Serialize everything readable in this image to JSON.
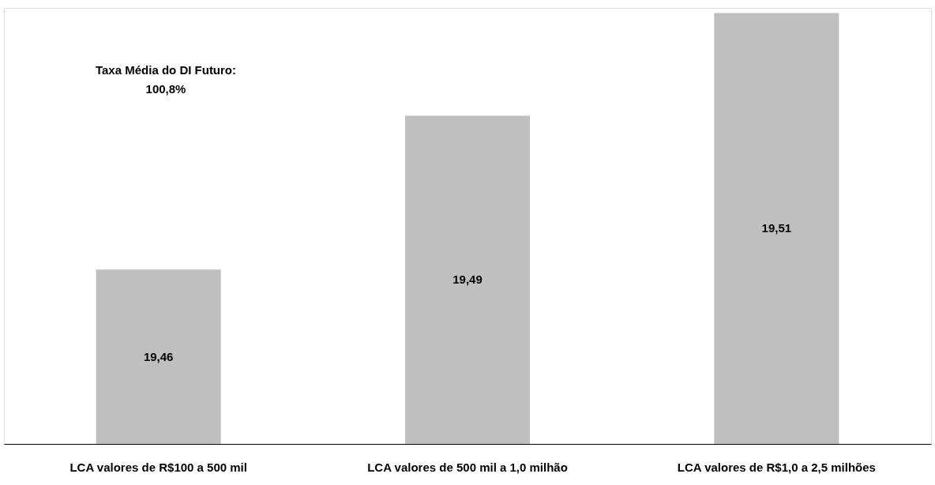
{
  "chart_data": {
    "type": "bar",
    "categories": [
      "LCA valores de R$100 a 500 mil",
      "LCA valores de 500 mil a 1,0 milhão",
      "LCA valores de R$1,0 a 2,5 milhões"
    ],
    "values": [
      19.46,
      19.49,
      19.51
    ],
    "value_labels": [
      "19,46",
      "19,49",
      "19,51"
    ],
    "color": "#bfbfbf",
    "ylim": [
      19.426,
      19.511
    ],
    "annotations": [
      "Taxa Média do DI Futuro:\n100,8%"
    ],
    "grid": false
  }
}
